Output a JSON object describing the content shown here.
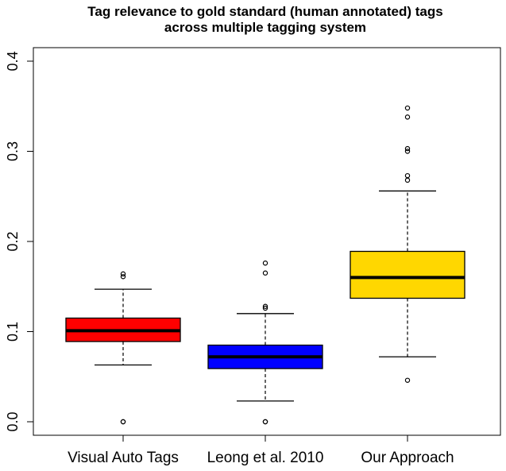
{
  "chart_data": {
    "type": "boxplot",
    "title": "Tag relevance to gold standard (human annotated) tags",
    "subtitle": "across multiple tagging system",
    "xlabel": "",
    "ylabel": "",
    "ylim": [
      0.0,
      0.4
    ],
    "y_ticks": [
      "0.0",
      "0.1",
      "0.2",
      "0.3",
      "0.4"
    ],
    "y_tick_values": [
      0.0,
      0.1,
      0.2,
      0.3,
      0.4
    ],
    "grid": false,
    "categories": [
      "Visual Auto Tags",
      "Leong et al. 2010",
      "Our Approach"
    ],
    "boxes": [
      {
        "name": "Visual Auto Tags",
        "color": "#ff0000",
        "whisker_low": 0.063,
        "q1": 0.089,
        "median": 0.101,
        "q3": 0.115,
        "whisker_high": 0.147,
        "outliers": [
          0.0,
          0.0,
          0.161,
          0.164
        ]
      },
      {
        "name": "Leong et al. 2010",
        "color": "#0000ff",
        "whisker_low": 0.023,
        "q1": 0.059,
        "median": 0.072,
        "q3": 0.085,
        "whisker_high": 0.12,
        "outliers": [
          0.0,
          0.0,
          0.126,
          0.128,
          0.165,
          0.176
        ]
      },
      {
        "name": "Our Approach",
        "color": "#ffd700",
        "whisker_low": 0.072,
        "q1": 0.137,
        "median": 0.16,
        "q3": 0.189,
        "whisker_high": 0.256,
        "outliers": [
          0.046,
          0.268,
          0.273,
          0.3,
          0.303,
          0.338,
          0.348
        ]
      }
    ]
  }
}
